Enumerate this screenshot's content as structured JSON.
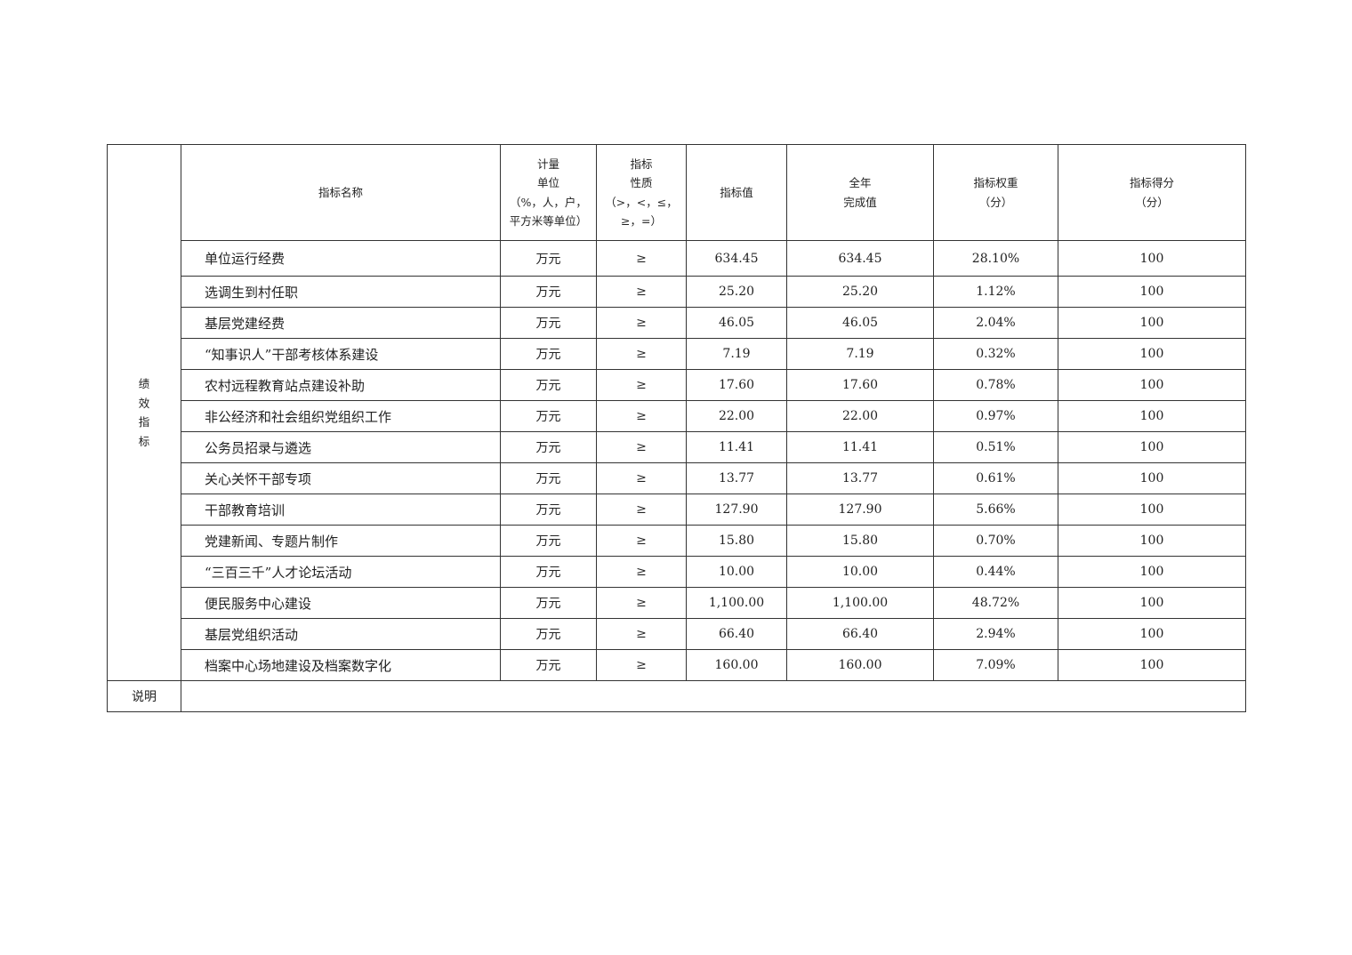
{
  "side_label": "绩效指标",
  "headers": {
    "name": "指标名称",
    "unit": [
      "计量",
      "单位",
      "（%，人，户，",
      "平方米等单位）"
    ],
    "nature": [
      "指标",
      "性质",
      "（>，<，≤，",
      "≥，=）"
    ],
    "target": "指标值",
    "actual": [
      "全年",
      "完成值"
    ],
    "weight": [
      "指标权重",
      "（分）"
    ],
    "score": [
      "指标得分",
      "（分）"
    ]
  },
  "rows": [
    {
      "name": "单位运行经费",
      "unit": "万元",
      "nature": "≥",
      "target": "634.45",
      "actual": "634.45",
      "weight": "28.10%",
      "score": "100"
    },
    {
      "name": "选调生到村任职",
      "unit": "万元",
      "nature": "≥",
      "target": "25.20",
      "actual": "25.20",
      "weight": "1.12%",
      "score": "100"
    },
    {
      "name": "基层党建经费",
      "unit": "万元",
      "nature": "≥",
      "target": "46.05",
      "actual": "46.05",
      "weight": "2.04%",
      "score": "100"
    },
    {
      "name": "“知事识人”干部考核体系建设",
      "unit": "万元",
      "nature": "≥",
      "target": "7.19",
      "actual": "7.19",
      "weight": "0.32%",
      "score": "100"
    },
    {
      "name": "农村远程教育站点建设补助",
      "unit": "万元",
      "nature": "≥",
      "target": "17.60",
      "actual": "17.60",
      "weight": "0.78%",
      "score": "100"
    },
    {
      "name": "非公经济和社会组织党组织工作",
      "unit": "万元",
      "nature": "≥",
      "target": "22.00",
      "actual": "22.00",
      "weight": "0.97%",
      "score": "100"
    },
    {
      "name": "公务员招录与遴选",
      "unit": "万元",
      "nature": "≥",
      "target": "11.41",
      "actual": "11.41",
      "weight": "0.51%",
      "score": "100"
    },
    {
      "name": "关心关怀干部专项",
      "unit": "万元",
      "nature": "≥",
      "target": "13.77",
      "actual": "13.77",
      "weight": "0.61%",
      "score": "100"
    },
    {
      "name": "干部教育培训",
      "unit": "万元",
      "nature": "≥",
      "target": "127.90",
      "actual": "127.90",
      "weight": "5.66%",
      "score": "100"
    },
    {
      "name": "党建新闻、专题片制作",
      "unit": "万元",
      "nature": "≥",
      "target": "15.80",
      "actual": "15.80",
      "weight": "0.70%",
      "score": "100"
    },
    {
      "name": "“三百三千”人才论坛活动",
      "unit": "万元",
      "nature": "≥",
      "target": "10.00",
      "actual": "10.00",
      "weight": "0.44%",
      "score": "100"
    },
    {
      "name": "便民服务中心建设",
      "unit": "万元",
      "nature": "≥",
      "target": "1,100.00",
      "actual": "1,100.00",
      "weight": "48.72%",
      "score": "100"
    },
    {
      "name": "基层党组织活动",
      "unit": "万元",
      "nature": "≥",
      "target": "66.40",
      "actual": "66.40",
      "weight": "2.94%",
      "score": "100"
    },
    {
      "name": "档案中心场地建设及档案数字化",
      "unit": "万元",
      "nature": "≥",
      "target": "160.00",
      "actual": "160.00",
      "weight": "7.09%",
      "score": "100"
    }
  ],
  "note_label": "说明",
  "note_value": ""
}
